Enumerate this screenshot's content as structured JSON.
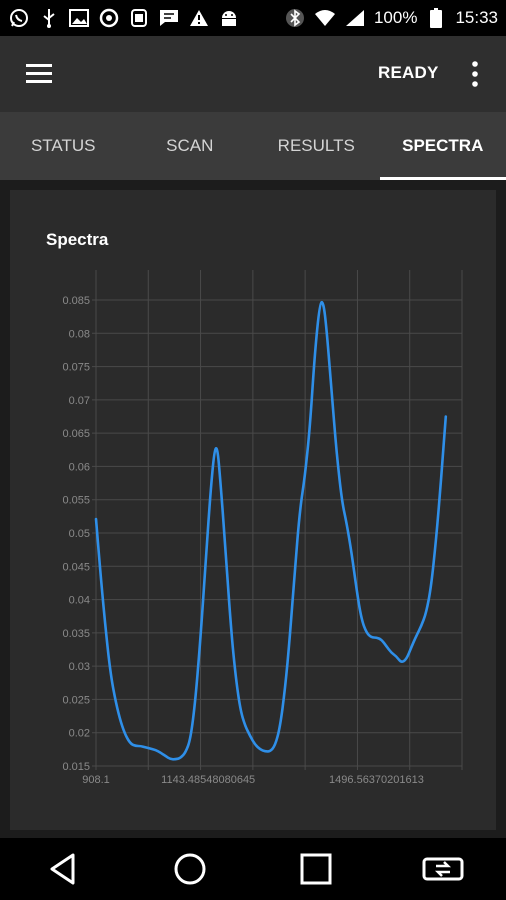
{
  "status_bar": {
    "left_icons": [
      "whatsapp-icon",
      "usb-icon",
      "image-icon",
      "sync-icon",
      "notification-icon",
      "message-icon",
      "warning-icon",
      "android-icon"
    ],
    "right_icons": [
      "bluetooth-icon",
      "wifi-icon",
      "signal-icon"
    ],
    "battery": "100%",
    "time": "15:33"
  },
  "appbar": {
    "status": "READY"
  },
  "tabs": [
    {
      "label": "STATUS"
    },
    {
      "label": "SCAN"
    },
    {
      "label": "RESULTS"
    },
    {
      "label": "SPECTRA",
      "active": true
    }
  ],
  "card": {
    "title": "Spectra"
  },
  "chart_data": {
    "type": "line",
    "title": "Spectra",
    "xlabel": "",
    "ylabel": "",
    "xlim": [
      908.1,
      1676.0
    ],
    "ylim": [
      0.015,
      0.085
    ],
    "x_tick_labels": [
      "908.1",
      "1143.48548080645",
      "1496.56370201613"
    ],
    "x_tick_values": [
      908.1,
      1143.48548080645,
      1496.56370201613
    ],
    "y_ticks": [
      0.015,
      0.02,
      0.025,
      0.03,
      0.035,
      0.04,
      0.045,
      0.05,
      0.055,
      0.06,
      0.065,
      0.07,
      0.075,
      0.08,
      0.085
    ],
    "y_tick_labels": [
      "0.015",
      "0.02",
      "0.025",
      "0.03",
      "0.035",
      "0.04",
      "0.045",
      "0.05",
      "0.055",
      "0.06",
      "0.065",
      "0.07",
      "0.075",
      "0.08",
      "0.085"
    ],
    "grid": true,
    "series": [
      {
        "color": "#2f8fe8",
        "points": [
          [
            908.1,
            0.0521
          ],
          [
            918.5,
            0.043
          ],
          [
            929.0,
            0.035
          ],
          [
            939.4,
            0.0285
          ],
          [
            949.8,
            0.0245
          ],
          [
            960.3,
            0.0215
          ],
          [
            970.7,
            0.0195
          ],
          [
            981.1,
            0.0183
          ],
          [
            991.6,
            0.018
          ],
          [
            1002.0,
            0.018
          ],
          [
            1012.4,
            0.0178
          ],
          [
            1022.9,
            0.0176
          ],
          [
            1033.3,
            0.0174
          ],
          [
            1043.7,
            0.017
          ],
          [
            1054.2,
            0.0165
          ],
          [
            1064.6,
            0.016
          ],
          [
            1075.0,
            0.016
          ],
          [
            1085.5,
            0.0162
          ],
          [
            1095.9,
            0.017
          ],
          [
            1106.3,
            0.019
          ],
          [
            1116.8,
            0.025
          ],
          [
            1127.2,
            0.034
          ],
          [
            1137.6,
            0.045
          ],
          [
            1148.1,
            0.056
          ],
          [
            1156.4,
            0.0624
          ],
          [
            1162.7,
            0.063
          ],
          [
            1168.9,
            0.058
          ],
          [
            1179.4,
            0.048
          ],
          [
            1189.8,
            0.037
          ],
          [
            1200.2,
            0.029
          ],
          [
            1210.7,
            0.0235
          ],
          [
            1221.1,
            0.021
          ],
          [
            1231.5,
            0.0195
          ],
          [
            1242.0,
            0.0182
          ],
          [
            1252.4,
            0.0175
          ],
          [
            1262.8,
            0.0172
          ],
          [
            1273.3,
            0.0172
          ],
          [
            1283.7,
            0.018
          ],
          [
            1294.1,
            0.0208
          ],
          [
            1304.6,
            0.0265
          ],
          [
            1315.0,
            0.0345
          ],
          [
            1325.4,
            0.0445
          ],
          [
            1335.9,
            0.0535
          ],
          [
            1346.3,
            0.0585
          ],
          [
            1356.7,
            0.0656
          ],
          [
            1367.2,
            0.077
          ],
          [
            1377.6,
            0.0845
          ],
          [
            1384.9,
            0.0848
          ],
          [
            1392.2,
            0.0805
          ],
          [
            1402.6,
            0.071
          ],
          [
            1413.0,
            0.062
          ],
          [
            1423.5,
            0.055
          ],
          [
            1433.9,
            0.0515
          ],
          [
            1444.3,
            0.047
          ],
          [
            1454.8,
            0.0415
          ],
          [
            1465.2,
            0.037
          ],
          [
            1475.6,
            0.035
          ],
          [
            1486.1,
            0.0343
          ],
          [
            1496.5,
            0.0343
          ],
          [
            1506.9,
            0.034
          ],
          [
            1517.4,
            0.033
          ],
          [
            1527.8,
            0.032
          ],
          [
            1538.2,
            0.0315
          ],
          [
            1548.7,
            0.0305
          ],
          [
            1559.1,
            0.031
          ],
          [
            1569.5,
            0.0328
          ],
          [
            1580.0,
            0.0345
          ],
          [
            1590.4,
            0.036
          ],
          [
            1600.8,
            0.038
          ],
          [
            1611.3,
            0.042
          ],
          [
            1621.7,
            0.049
          ],
          [
            1632.1,
            0.058
          ],
          [
            1642.0,
            0.0675
          ]
        ]
      }
    ]
  }
}
